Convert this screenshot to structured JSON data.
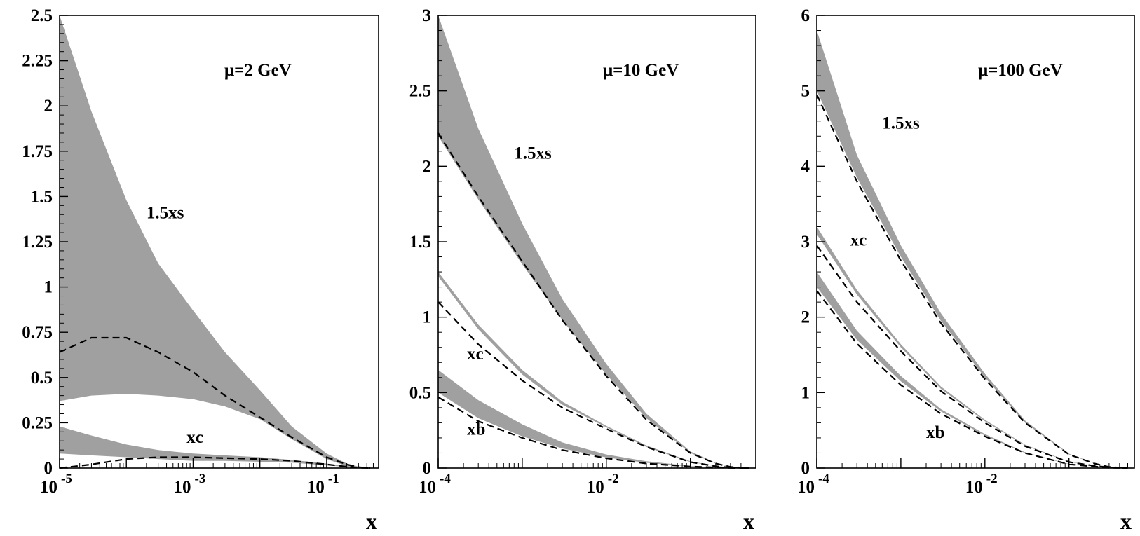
{
  "chart_data": [
    {
      "type": "area",
      "annotation": "μ=2 GeV",
      "xlabel": "x",
      "x_scale": "log",
      "xlim": [
        1e-05,
        0.6
      ],
      "ylim": [
        0,
        2.5
      ],
      "yticks": [
        "0",
        "0.25",
        "0.5",
        "0.75",
        "1",
        "1.25",
        "1.5",
        "1.75",
        "2",
        "2.25",
        "2.5"
      ],
      "xticks": [
        {
          "base": "10",
          "exp": "-5"
        },
        {
          "base": "10",
          "exp": "-3"
        },
        {
          "base": "10",
          "exp": "-1"
        }
      ],
      "band_color": "#a0a0a0",
      "series": [
        {
          "name": "1.5xs",
          "x": [
            1e-05,
            3e-05,
            0.0001,
            0.0003,
            0.001,
            0.003,
            0.01,
            0.03,
            0.1,
            0.2,
            0.3,
            0.45
          ],
          "lower": [
            0.37,
            0.4,
            0.41,
            0.4,
            0.38,
            0.34,
            0.27,
            0.16,
            0.05,
            0.01,
            0.003,
            0.0
          ],
          "upper": [
            2.5,
            1.97,
            1.48,
            1.13,
            0.87,
            0.64,
            0.43,
            0.23,
            0.08,
            0.025,
            0.008,
            0.0
          ],
          "central": [
            0.64,
            0.72,
            0.72,
            0.64,
            0.53,
            0.4,
            0.28,
            0.17,
            0.06,
            0.02,
            0.005,
            0.0
          ],
          "label_pos": [
            0.0002,
            1.38
          ]
        },
        {
          "name": "xc",
          "x": [
            1e-05,
            3e-05,
            0.0001,
            0.0003,
            0.001,
            0.003,
            0.01,
            0.03,
            0.1,
            0.2,
            0.3,
            0.45
          ],
          "lower": [
            0.08,
            0.07,
            0.06,
            0.05,
            0.04,
            0.04,
            0.035,
            0.03,
            0.015,
            0.006,
            0.002,
            0.0
          ],
          "upper": [
            0.23,
            0.18,
            0.13,
            0.1,
            0.08,
            0.07,
            0.06,
            0.045,
            0.025,
            0.01,
            0.003,
            0.0
          ],
          "central": [
            -0.02,
            0.02,
            0.05,
            0.06,
            0.06,
            0.055,
            0.05,
            0.04,
            0.02,
            0.008,
            0.002,
            0.0
          ],
          "label_pos": [
            0.0008,
            0.14
          ]
        }
      ]
    },
    {
      "type": "area",
      "annotation": "μ=10 GeV",
      "xlabel": "x",
      "x_scale": "log",
      "xlim": [
        0.0001,
        0.6
      ],
      "ylim": [
        0,
        3
      ],
      "yticks": [
        "0",
        "0.5",
        "1",
        "1.5",
        "2",
        "2.5",
        "3"
      ],
      "xticks": [
        {
          "base": "10",
          "exp": "-4"
        },
        {
          "base": "10",
          "exp": "-2"
        }
      ],
      "band_color": "#a0a0a0",
      "series": [
        {
          "name": "1.5xs",
          "x": [
            0.0001,
            0.0003,
            0.001,
            0.003,
            0.01,
            0.03,
            0.1,
            0.2,
            0.3,
            0.5
          ],
          "lower": [
            2.2,
            1.78,
            1.35,
            0.98,
            0.62,
            0.33,
            0.1,
            0.03,
            0.008,
            0.0
          ],
          "upper": [
            3.0,
            2.25,
            1.62,
            1.12,
            0.69,
            0.36,
            0.11,
            0.035,
            0.01,
            0.0
          ],
          "central": [
            2.22,
            1.8,
            1.37,
            0.98,
            0.61,
            0.32,
            0.1,
            0.03,
            0.008,
            0.0
          ],
          "label_pos": [
            0.0008,
            2.05
          ]
        },
        {
          "name": "xc",
          "x": [
            0.0001,
            0.0003,
            0.001,
            0.003,
            0.01,
            0.03,
            0.1,
            0.2,
            0.3,
            0.5
          ],
          "lower": [
            1.27,
            0.92,
            0.62,
            0.42,
            0.27,
            0.14,
            0.04,
            0.012,
            0.004,
            0.0
          ],
          "upper": [
            1.3,
            0.95,
            0.65,
            0.44,
            0.28,
            0.15,
            0.045,
            0.014,
            0.005,
            0.0
          ],
          "central": [
            1.1,
            0.82,
            0.58,
            0.4,
            0.26,
            0.14,
            0.04,
            0.012,
            0.004,
            0.0
          ],
          "label_pos": [
            0.00022,
            0.72
          ]
        },
        {
          "name": "xb",
          "x": [
            0.0001,
            0.0003,
            0.001,
            0.003,
            0.01,
            0.03,
            0.1,
            0.2,
            0.3,
            0.5
          ],
          "lower": [
            0.5,
            0.33,
            0.21,
            0.13,
            0.07,
            0.035,
            0.01,
            0.004,
            0.001,
            0.0
          ],
          "upper": [
            0.65,
            0.45,
            0.29,
            0.17,
            0.09,
            0.045,
            0.014,
            0.005,
            0.002,
            0.0
          ],
          "central": [
            0.47,
            0.31,
            0.2,
            0.12,
            0.065,
            0.03,
            0.01,
            0.004,
            0.001,
            0.0
          ],
          "label_pos": [
            0.00022,
            0.22
          ]
        }
      ]
    },
    {
      "type": "area",
      "annotation": "μ=100 GeV",
      "xlabel": "x",
      "x_scale": "log",
      "xlim": [
        0.0001,
        0.6
      ],
      "ylim": [
        0,
        6
      ],
      "yticks": [
        "0",
        "1",
        "2",
        "3",
        "4",
        "5",
        "6"
      ],
      "xticks": [
        {
          "base": "10",
          "exp": "-4"
        },
        {
          "base": "10",
          "exp": "-2"
        }
      ],
      "band_color": "#a0a0a0",
      "series": [
        {
          "name": "1.5xs",
          "x": [
            0.0001,
            0.0003,
            0.001,
            0.003,
            0.01,
            0.03,
            0.1,
            0.2,
            0.3,
            0.5
          ],
          "lower": [
            5.0,
            3.85,
            2.8,
            1.95,
            1.2,
            0.6,
            0.18,
            0.06,
            0.015,
            0.0
          ],
          "upper": [
            5.8,
            4.15,
            2.95,
            2.05,
            1.25,
            0.63,
            0.19,
            0.065,
            0.017,
            0.0
          ],
          "central": [
            4.95,
            3.8,
            2.75,
            1.92,
            1.18,
            0.6,
            0.18,
            0.06,
            0.015,
            0.0
          ],
          "label_pos": [
            0.0006,
            4.5
          ]
        },
        {
          "name": "xc",
          "x": [
            0.0001,
            0.0003,
            0.001,
            0.003,
            0.01,
            0.03,
            0.1,
            0.2,
            0.3,
            0.5
          ],
          "lower": [
            3.1,
            2.3,
            1.6,
            1.05,
            0.62,
            0.3,
            0.08,
            0.03,
            0.008,
            0.0
          ],
          "upper": [
            3.2,
            2.36,
            1.64,
            1.08,
            0.64,
            0.31,
            0.085,
            0.032,
            0.009,
            0.0
          ],
          "central": [
            2.95,
            2.2,
            1.55,
            1.02,
            0.6,
            0.29,
            0.08,
            0.03,
            0.008,
            0.0
          ],
          "label_pos": [
            0.00025,
            2.95
          ]
        },
        {
          "name": "xb",
          "x": [
            0.0001,
            0.0003,
            0.001,
            0.003,
            0.01,
            0.03,
            0.1,
            0.2,
            0.3,
            0.5
          ],
          "lower": [
            2.4,
            1.7,
            1.15,
            0.75,
            0.43,
            0.2,
            0.05,
            0.02,
            0.005,
            0.0
          ],
          "upper": [
            2.6,
            1.82,
            1.22,
            0.78,
            0.45,
            0.21,
            0.055,
            0.022,
            0.006,
            0.0
          ],
          "central": [
            2.35,
            1.65,
            1.1,
            0.72,
            0.42,
            0.2,
            0.05,
            0.02,
            0.005,
            0.0
          ],
          "label_pos": [
            0.002,
            0.4
          ]
        }
      ]
    }
  ]
}
